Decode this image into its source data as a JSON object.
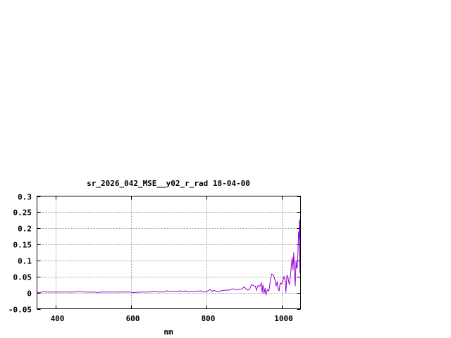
{
  "chart_data": {
    "type": "line",
    "title": "sr_2026_042_MSE__y02_r_rad 18-04-00",
    "xlabel": "nm",
    "ylabel": "",
    "xlim": [
      350,
      1050
    ],
    "ylim": [
      -0.05,
      0.3
    ],
    "xticks": [
      400,
      600,
      800,
      1000
    ],
    "xtick_labels": [
      "400",
      "600",
      "800",
      "1000"
    ],
    "yticks": [
      -0.05,
      0,
      0.05,
      0.1,
      0.15,
      0.2,
      0.25,
      0.3
    ],
    "ytick_labels": [
      "-0.05",
      "0",
      "0.05",
      "0.1",
      "0.15",
      "0.2",
      "0.25",
      "0.3"
    ],
    "grid": true,
    "legend": "none",
    "series": [
      {
        "color": "#9400d3",
        "x": [
          350,
          360,
          365,
          375,
          400,
          425,
          450,
          455,
          475,
          500,
          510,
          525,
          550,
          575,
          600,
          605,
          625,
          650,
          660,
          675,
          690,
          695,
          700,
          725,
          730,
          740,
          745,
          750,
          760,
          775,
          785,
          790,
          800,
          810,
          815,
          820,
          830,
          840,
          850,
          860,
          870,
          876,
          885,
          895,
          900,
          905,
          910,
          915,
          920,
          925,
          930,
          933,
          937,
          942,
          946,
          948,
          950,
          953,
          956,
          958,
          962,
          966,
          970,
          973,
          978,
          982,
          985,
          988,
          990,
          993,
          996,
          1000,
          1003,
          1006,
          1009,
          1011,
          1014,
          1017,
          1020,
          1023,
          1026,
          1028,
          1030,
          1032,
          1034,
          1036,
          1038,
          1040,
          1042,
          1044,
          1045,
          1046,
          1047,
          1048,
          1049,
          1050
        ],
        "y": [
          0.001,
          0.001,
          0.003,
          0.002,
          0.002,
          0.002,
          0.002,
          0.004,
          0.002,
          0.002,
          0.001,
          0.002,
          0.002,
          0.002,
          0.002,
          0.0,
          0.002,
          0.002,
          0.004,
          0.002,
          0.003,
          0.006,
          0.004,
          0.004,
          0.006,
          0.003,
          0.006,
          0.002,
          0.004,
          0.004,
          0.006,
          0.002,
          0.003,
          0.01,
          0.004,
          0.007,
          0.003,
          0.006,
          0.008,
          0.008,
          0.012,
          0.01,
          0.01,
          0.012,
          0.018,
          0.012,
          0.008,
          0.012,
          0.025,
          0.022,
          0.02,
          0.008,
          0.022,
          0.02,
          0.03,
          0.0,
          0.025,
          -0.003,
          0.015,
          -0.008,
          0.01,
          0.005,
          0.04,
          0.058,
          0.055,
          0.04,
          0.02,
          0.035,
          0.015,
          0.005,
          0.03,
          0.027,
          0.035,
          0.05,
          0.04,
          0.0,
          0.055,
          0.045,
          0.025,
          0.05,
          0.09,
          0.11,
          0.07,
          0.125,
          0.05,
          0.02,
          0.1,
          0.075,
          0.085,
          0.16,
          0.19,
          0.17,
          0.225,
          0.06,
          0.23,
          0.12
        ]
      }
    ]
  }
}
